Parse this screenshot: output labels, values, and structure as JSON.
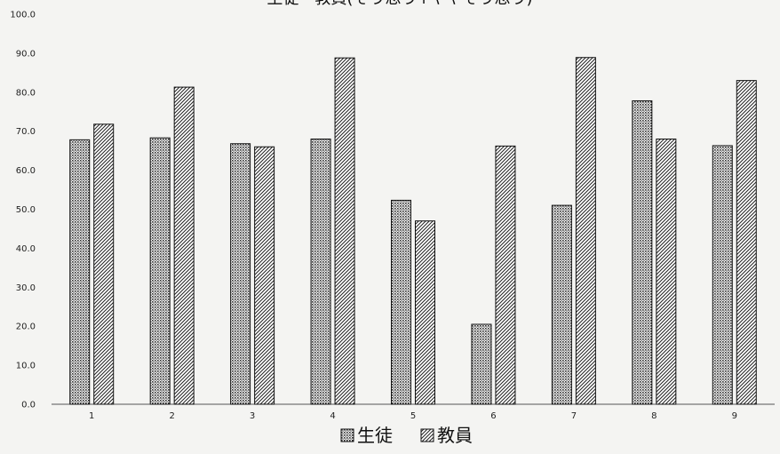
{
  "chart_data": {
    "type": "bar",
    "title": "生徒・教員(そう思う+ややそう思う)",
    "xlabel": "",
    "ylabel": "",
    "ylim": [
      0,
      100
    ],
    "y_ticks": [
      "0.0",
      "10.0",
      "20.0",
      "30.0",
      "40.0",
      "50.0",
      "60.0",
      "70.0",
      "80.0",
      "90.0",
      "100.0"
    ],
    "categories": [
      "1",
      "2",
      "3",
      "4",
      "5",
      "6",
      "7",
      "8",
      "9"
    ],
    "series": [
      {
        "name": "生徒",
        "values": [
          67.8,
          68.3,
          66.8,
          68.0,
          52.3,
          20.5,
          51.0,
          77.8,
          66.3
        ]
      },
      {
        "name": "教員",
        "values": [
          71.8,
          81.3,
          66.0,
          88.8,
          47.0,
          66.2,
          88.9,
          68.0,
          83.0
        ]
      }
    ],
    "legend_position": "bottom",
    "grid": false
  }
}
